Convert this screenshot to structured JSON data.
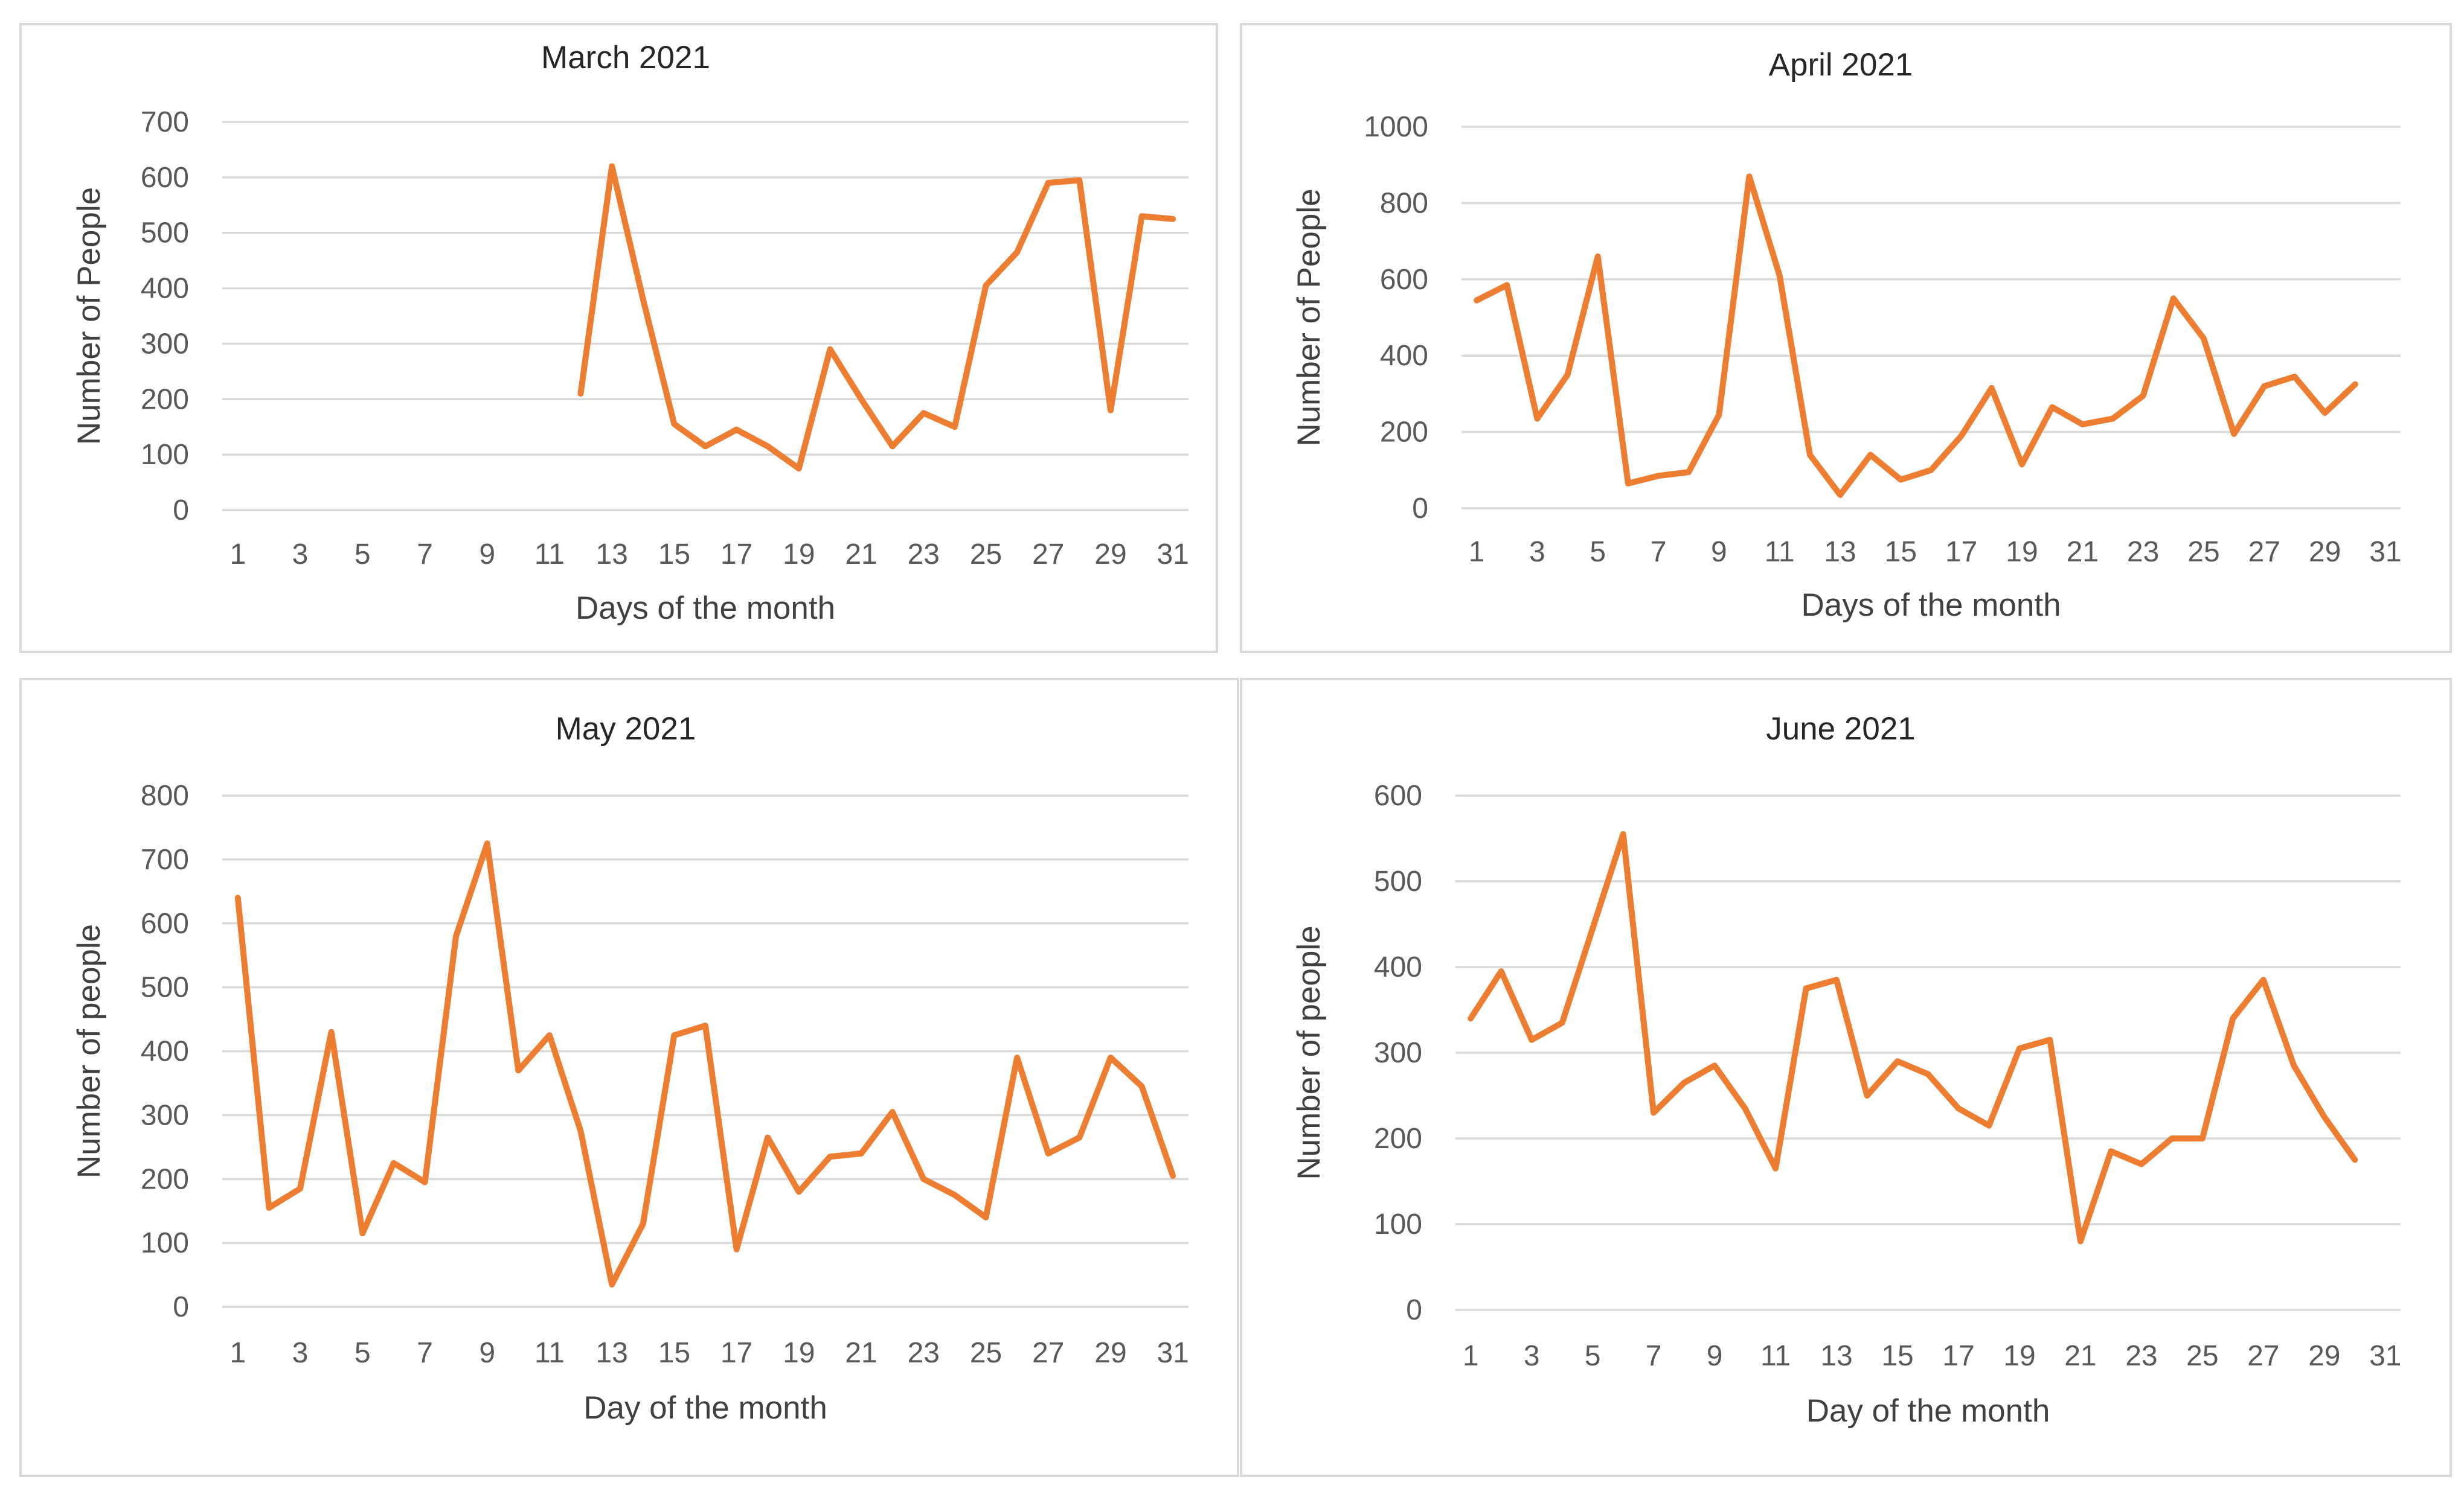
{
  "chart_data": [
    {
      "type": "line",
      "title": "March 2021",
      "xlabel": "Days of the month",
      "ylabel": "Number of People",
      "ylim": [
        0,
        700
      ],
      "yticks": [
        0,
        100,
        200,
        300,
        400,
        500,
        600,
        700
      ],
      "x_tick_labels": [
        "1",
        "3",
        "5",
        "7",
        "9",
        "11",
        "13",
        "15",
        "17",
        "19",
        "21",
        "23",
        "25",
        "27",
        "29",
        "31"
      ],
      "grid": true,
      "series": [
        {
          "name": "Number of People",
          "color": "#ed7d31",
          "x": [
            12,
            13,
            14,
            15,
            16,
            17,
            18,
            19,
            20,
            21,
            22,
            23,
            24,
            25,
            26,
            27,
            28,
            29,
            30,
            31
          ],
          "values": [
            210,
            620,
            380,
            155,
            115,
            145,
            115,
            75,
            290,
            200,
            115,
            175,
            150,
            405,
            465,
            590,
            595,
            180,
            530,
            525
          ]
        }
      ]
    },
    {
      "type": "line",
      "title": "April 2021",
      "xlabel": "Days of the month",
      "ylabel": "Number of People",
      "ylim": [
        0,
        1000
      ],
      "yticks": [
        0,
        200,
        400,
        600,
        800,
        1000
      ],
      "x_tick_labels": [
        "1",
        "3",
        "5",
        "7",
        "9",
        "11",
        "13",
        "15",
        "17",
        "19",
        "21",
        "23",
        "25",
        "27",
        "29",
        "31"
      ],
      "grid": true,
      "series": [
        {
          "name": "Number of People",
          "color": "#ed7d31",
          "x": [
            1,
            2,
            3,
            4,
            5,
            6,
            7,
            8,
            9,
            10,
            11,
            12,
            13,
            14,
            15,
            16,
            17,
            18,
            19,
            20,
            21,
            22,
            23,
            24,
            25,
            26,
            27,
            28,
            29,
            30
          ],
          "values": [
            545,
            585,
            235,
            350,
            660,
            65,
            85,
            95,
            245,
            870,
            610,
            140,
            35,
            140,
            75,
            100,
            190,
            315,
            115,
            265,
            220,
            235,
            295,
            550,
            445,
            195,
            320,
            345,
            250,
            325
          ]
        }
      ]
    },
    {
      "type": "line",
      "title": "May 2021",
      "xlabel": "Day of the month",
      "ylabel": "Number of people",
      "ylim": [
        0,
        800
      ],
      "yticks": [
        0,
        100,
        200,
        300,
        400,
        500,
        600,
        700,
        800
      ],
      "x_tick_labels": [
        "1",
        "3",
        "5",
        "7",
        "9",
        "11",
        "13",
        "15",
        "17",
        "19",
        "21",
        "23",
        "25",
        "27",
        "29",
        "31"
      ],
      "grid": true,
      "series": [
        {
          "name": "Number of people",
          "color": "#ed7d31",
          "x": [
            1,
            2,
            3,
            4,
            5,
            6,
            7,
            8,
            9,
            10,
            11,
            12,
            13,
            14,
            15,
            16,
            17,
            18,
            19,
            20,
            21,
            22,
            23,
            24,
            25,
            26,
            27,
            28,
            29,
            30,
            31
          ],
          "values": [
            640,
            155,
            185,
            430,
            115,
            225,
            195,
            580,
            725,
            370,
            425,
            275,
            35,
            130,
            425,
            440,
            90,
            265,
            180,
            235,
            240,
            305,
            200,
            175,
            140,
            390,
            240,
            265,
            390,
            345,
            205
          ]
        }
      ]
    },
    {
      "type": "line",
      "title": "June 2021",
      "xlabel": "Day of the month",
      "ylabel": "Number of people",
      "ylim": [
        0,
        600
      ],
      "yticks": [
        0,
        100,
        200,
        300,
        400,
        500,
        600
      ],
      "x_tick_labels": [
        "1",
        "3",
        "5",
        "7",
        "9",
        "11",
        "13",
        "15",
        "17",
        "19",
        "21",
        "23",
        "25",
        "27",
        "29",
        "31"
      ],
      "grid": true,
      "series": [
        {
          "name": "Number of people",
          "color": "#ed7d31",
          "x": [
            1,
            2,
            3,
            4,
            5,
            6,
            7,
            8,
            9,
            10,
            11,
            12,
            13,
            14,
            15,
            16,
            17,
            18,
            19,
            20,
            21,
            22,
            23,
            24,
            25,
            26,
            27,
            28,
            29,
            30
          ],
          "values": [
            340,
            395,
            315,
            335,
            445,
            555,
            230,
            265,
            285,
            235,
            165,
            375,
            385,
            250,
            290,
            275,
            235,
            215,
            305,
            315,
            80,
            185,
            170,
            200,
            200,
            340,
            385,
            285,
            225,
            175
          ]
        }
      ]
    }
  ]
}
